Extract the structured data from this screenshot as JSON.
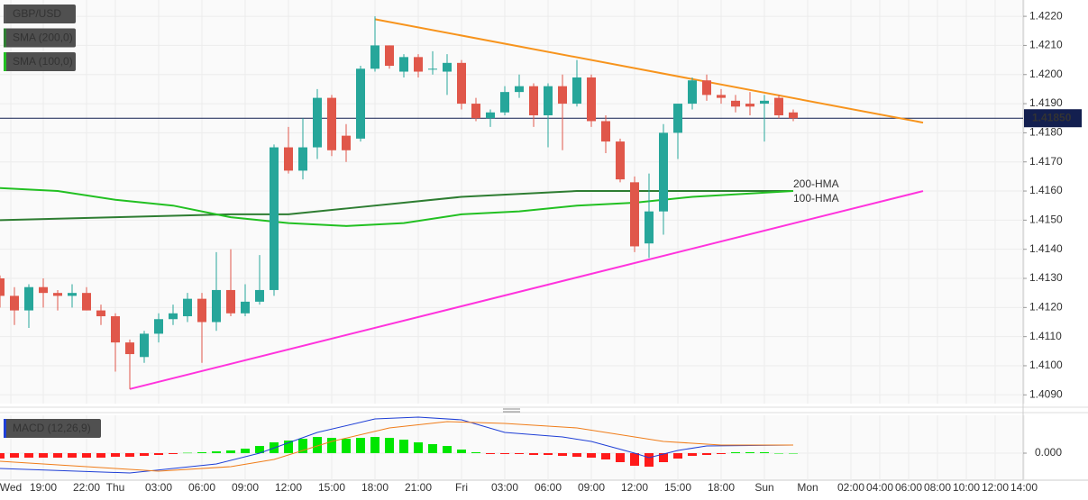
{
  "chart_data": [
    {
      "type": "candlestick",
      "legend": [
        "GBP/USD",
        "SMA (200,0)",
        "SMA (100,0)"
      ],
      "legend_colors": [
        "#555555",
        "#2e7d32",
        "#22c022"
      ],
      "xlim": [
        0,
        71
      ],
      "ylim": [
        1.4087,
        1.42256
      ],
      "grid": true,
      "yticks": [
        {
          "value": 1.422,
          "label": "1.4220"
        },
        {
          "value": 1.421,
          "label": "1.4210"
        },
        {
          "value": 1.42,
          "label": "1.4200"
        },
        {
          "value": 1.419,
          "label": "1.4190"
        },
        {
          "value": 1.418,
          "label": "1.4180"
        },
        {
          "value": 1.417,
          "label": "1.4170"
        },
        {
          "value": 1.416,
          "label": "1.4160"
        },
        {
          "value": 1.415,
          "label": "1.4150"
        },
        {
          "value": 1.414,
          "label": "1.4140"
        },
        {
          "value": 1.413,
          "label": "1.4130"
        },
        {
          "value": 1.412,
          "label": "1.4120"
        },
        {
          "value": 1.411,
          "label": "1.4110"
        },
        {
          "value": 1.41,
          "label": "1.4100"
        },
        {
          "value": 1.409,
          "label": "1.4090"
        }
      ],
      "xticks": [
        {
          "value": 0.75,
          "label": "Wed"
        },
        {
          "value": 3,
          "label": "19:00"
        },
        {
          "value": 6,
          "label": "22:00"
        },
        {
          "value": 8,
          "label": "Thu"
        },
        {
          "value": 11,
          "label": "03:00"
        },
        {
          "value": 14,
          "label": "06:00"
        },
        {
          "value": 17,
          "label": "09:00"
        },
        {
          "value": 20,
          "label": "12:00"
        },
        {
          "value": 23,
          "label": "15:00"
        },
        {
          "value": 26,
          "label": "18:00"
        },
        {
          "value": 29,
          "label": "21:00"
        },
        {
          "value": 32,
          "label": "Fri"
        },
        {
          "value": 35,
          "label": "03:00"
        },
        {
          "value": 38,
          "label": "06:00"
        },
        {
          "value": 41,
          "label": "09:00"
        },
        {
          "value": 44,
          "label": "12:00"
        },
        {
          "value": 47,
          "label": "15:00"
        },
        {
          "value": 50,
          "label": "18:00"
        },
        {
          "value": 53,
          "label": "Sun"
        },
        {
          "value": 56,
          "label": "Mon"
        },
        {
          "value": 59,
          "label": "02:00"
        },
        {
          "value": 61,
          "label": "04:00"
        },
        {
          "value": 63,
          "label": "06:00"
        },
        {
          "value": 65,
          "label": "08:00"
        },
        {
          "value": 67,
          "label": "10:00"
        },
        {
          "value": 69,
          "label": "12:00"
        },
        {
          "value": 71,
          "label": "14:00"
        }
      ],
      "candles": {
        "up_color": "#26a69a",
        "down_color": "#e0574a",
        "x": [
          0,
          1,
          2,
          3,
          4,
          5,
          6,
          7,
          8,
          9,
          10,
          11,
          12,
          13,
          14,
          15,
          16,
          17,
          18,
          19,
          20,
          21,
          22,
          23,
          24,
          25,
          26,
          27,
          28,
          29,
          30,
          31,
          32,
          33,
          34,
          35,
          36,
          37,
          38,
          39,
          40,
          41,
          42,
          43,
          44,
          45,
          46,
          47,
          48,
          49,
          50,
          51,
          52,
          53,
          54,
          55
        ],
        "open": [
          1.413,
          1.4124,
          1.4119,
          1.4127,
          1.4125,
          1.4124,
          1.4125,
          1.4119,
          1.4117,
          1.4108,
          1.4103,
          1.4111,
          1.4116,
          1.4117,
          1.4123,
          1.4115,
          1.4126,
          1.4118,
          1.4122,
          1.4126,
          1.4175,
          1.4167,
          1.4175,
          1.4192,
          1.4179,
          1.4178,
          1.4202,
          1.421,
          1.4201,
          1.4206,
          1.4202,
          1.4201,
          1.4204,
          1.419,
          1.4185,
          1.4187,
          1.4194,
          1.4196,
          1.4186,
          1.4196,
          1.419,
          1.4199,
          1.4184,
          1.4177,
          1.4163,
          1.4142,
          1.4153,
          1.418,
          1.419,
          1.4198,
          1.4193,
          1.4191,
          1.419,
          1.419,
          1.4192,
          1.4187
        ],
        "high": [
          1.4131,
          1.4127,
          1.4128,
          1.413,
          1.4126,
          1.4128,
          1.4127,
          1.4121,
          1.4118,
          1.4109,
          1.4112,
          1.4118,
          1.4121,
          1.4125,
          1.4125,
          1.4139,
          1.414,
          1.4128,
          1.4138,
          1.4176,
          1.4182,
          1.4185,
          1.4195,
          1.4193,
          1.4183,
          1.4203,
          1.422,
          1.421,
          1.4207,
          1.4207,
          1.4208,
          1.4207,
          1.4205,
          1.4192,
          1.4188,
          1.4196,
          1.42,
          1.4197,
          1.4197,
          1.42,
          1.4205,
          1.42,
          1.4186,
          1.4178,
          1.4165,
          1.4166,
          1.4183,
          1.419,
          1.4199,
          1.42,
          1.4195,
          1.4193,
          1.4194,
          1.4193,
          1.4193,
          1.4188
        ],
        "low": [
          1.412,
          1.4114,
          1.4113,
          1.412,
          1.4119,
          1.412,
          1.4119,
          1.4114,
          1.4098,
          1.4092,
          1.4101,
          1.4108,
          1.4114,
          1.4115,
          1.4101,
          1.4112,
          1.4117,
          1.4117,
          1.4121,
          1.4124,
          1.4166,
          1.4164,
          1.4171,
          1.4172,
          1.417,
          1.4177,
          1.4201,
          1.4202,
          1.4199,
          1.4199,
          1.42,
          1.4193,
          1.4188,
          1.4184,
          1.4182,
          1.4186,
          1.4192,
          1.4182,
          1.4175,
          1.4174,
          1.4189,
          1.4182,
          1.4173,
          1.4163,
          1.4139,
          1.4137,
          1.4145,
          1.4171,
          1.4188,
          1.4191,
          1.419,
          1.4187,
          1.4186,
          1.4177,
          1.4185,
          1.4184
        ],
        "close": [
          1.4124,
          1.4119,
          1.4127,
          1.4125,
          1.4124,
          1.4125,
          1.4119,
          1.4117,
          1.4108,
          1.4104,
          1.4111,
          1.4116,
          1.4118,
          1.4123,
          1.4115,
          1.4126,
          1.4118,
          1.4122,
          1.4126,
          1.4175,
          1.4167,
          1.4175,
          1.4192,
          1.4174,
          1.4174,
          1.4202,
          1.421,
          1.4203,
          1.4206,
          1.4201,
          1.4202,
          1.4204,
          1.419,
          1.4185,
          1.4187,
          1.4194,
          1.4196,
          1.4186,
          1.4196,
          1.419,
          1.4199,
          1.4184,
          1.4177,
          1.4164,
          1.4141,
          1.4153,
          1.418,
          1.419,
          1.4198,
          1.4193,
          1.4192,
          1.4189,
          1.4189,
          1.4191,
          1.4186,
          1.4185
        ]
      },
      "series": [
        {
          "name": "SMA (200,0)",
          "color": "#2e7d32",
          "x": [
            0,
            8,
            16,
            20,
            24,
            28,
            32,
            36,
            40,
            44,
            48,
            55
          ],
          "values": [
            1.415,
            1.4151,
            1.4152,
            1.4152,
            1.4154,
            1.4156,
            1.4158,
            1.4159,
            1.416,
            1.416,
            1.416,
            1.416
          ]
        },
        {
          "name": "SMA (100,0)",
          "color": "#22c022",
          "x": [
            0,
            4,
            8,
            12,
            16,
            20,
            24,
            28,
            32,
            36,
            40,
            44,
            48,
            55
          ],
          "values": [
            1.4161,
            1.416,
            1.4157,
            1.4155,
            1.4151,
            1.4149,
            1.4148,
            1.4149,
            1.4152,
            1.4153,
            1.4155,
            1.4156,
            1.4158,
            1.416
          ]
        }
      ],
      "trendlines": [
        {
          "color": "#f7941d",
          "x": [
            26,
            64
          ],
          "values": [
            1.4219,
            1.41835
          ]
        },
        {
          "color": "#ff33dd",
          "x": [
            9,
            64
          ],
          "values": [
            1.4092,
            1.416
          ]
        }
      ],
      "annotations": [
        {
          "text": "200-HMA",
          "color": "#2e7d32"
        },
        {
          "text": "100-HMA",
          "color": "#22b822"
        }
      ],
      "last_price": {
        "value": 1.4185,
        "label": "1.41850",
        "color": "#131f4f"
      }
    },
    {
      "type": "macd",
      "title": "MACD (12,26,9)",
      "ylim": [
        -0.00075,
        0.001025
      ],
      "yticks": [
        {
          "value": 0,
          "label": "0.000"
        }
      ],
      "histogram": {
        "up_color": "#00e600",
        "down_color": "#ff1a1a",
        "values": [
          -0.00015,
          -0.000125,
          -0.000125,
          -0.000125,
          -0.000125,
          -0.000125,
          -0.000125,
          -0.000125,
          -0.0001,
          -0.0001,
          -7.5e-05,
          -5e-05,
          -2.5e-05,
          1e-05,
          2.5e-05,
          5e-05,
          7.5e-05,
          0.000125,
          0.0002,
          0.0003,
          0.00035,
          0.0004,
          0.00045,
          0.000425,
          0.0004,
          0.000425,
          0.00045,
          0.000425,
          0.000375,
          0.0003,
          0.00025,
          0.0002,
          0.0001,
          2.5e-05,
          -2.5e-05,
          -2.5e-05,
          -2.5e-05,
          -5e-05,
          -5e-05,
          -7.5e-05,
          -0.0001,
          -0.000125,
          -0.000175,
          -0.00025,
          -0.00035,
          -0.000375,
          -0.00025,
          -0.00015,
          -7.5e-05,
          -5e-05,
          -2.5e-05,
          2.5e-05,
          2.5e-05,
          2.5e-05,
          0,
          0
        ]
      },
      "lines": [
        {
          "color": "#1f3fd6",
          "x": [
            0,
            9,
            15,
            18,
            22,
            26,
            29,
            32,
            35,
            39,
            41,
            44,
            45,
            47,
            49,
            55
          ],
          "values": [
            -0.000425,
            -0.00055,
            -0.0003,
            0,
            0.000575,
            0.00095,
            0.001,
            0.000925,
            0.000575,
            0.00045,
            0.000325,
            0,
            -0.000125,
            7.5e-05,
            0.0002,
            0.000225
          ]
        },
        {
          "color": "#f07d1a",
          "x": [
            0,
            8,
            11,
            16,
            19,
            23,
            27,
            31,
            35,
            40,
            44,
            46,
            50,
            55
          ],
          "values": [
            -0.000225,
            -0.000425,
            -0.0005,
            -0.000375,
            -0.000175,
            0.000325,
            0.0007,
            0.000875,
            0.000825,
            0.0007,
            0.00045,
            0.000325,
            0.000225,
            0.000225
          ]
        }
      ]
    }
  ]
}
